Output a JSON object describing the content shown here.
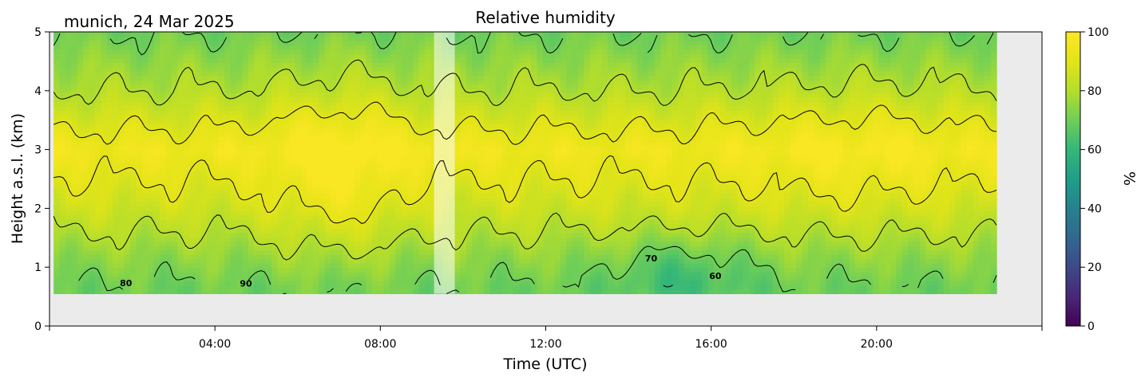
{
  "chart_data": {
    "type": "heatmap",
    "title": "Relative humidity",
    "subtitle": "munich, 24 Mar 2025",
    "xlabel": "Time (UTC)",
    "ylabel": "Height a.s.l. (km)",
    "x_tick_labels": [
      "04:00",
      "08:00",
      "12:00",
      "16:00",
      "20:00"
    ],
    "x_tick_hours": [
      4,
      8,
      12,
      16,
      20
    ],
    "x_range_hours": [
      0,
      24
    ],
    "y_tick_labels": [
      "0",
      "1",
      "2",
      "3",
      "4",
      "5"
    ],
    "y_ticks": [
      0,
      1,
      2,
      3,
      4,
      5
    ],
    "ylim": [
      0,
      5
    ],
    "data_time_range_hours": [
      0.1,
      22.9
    ],
    "data_height_range_km": [
      0.55,
      5
    ],
    "missing_data_band_hours": [
      9.3,
      9.8
    ],
    "colorbar": {
      "label": "%",
      "range": [
        0,
        100
      ],
      "tick_labels": [
        "0",
        "20",
        "40",
        "60",
        "80",
        "100"
      ],
      "ticks": [
        0,
        20,
        40,
        60,
        80,
        100
      ],
      "colormap": "viridis"
    },
    "contour_levels": [
      60,
      70,
      80,
      90
    ],
    "contour_labels": [
      {
        "text": "80",
        "time_h": 1.85,
        "height_km": 0.68
      },
      {
        "text": "90",
        "time_h": 4.75,
        "height_km": 0.67
      },
      {
        "text": "70",
        "time_h": 14.55,
        "height_km": 1.1
      },
      {
        "text": "60",
        "time_h": 16.1,
        "height_km": 0.8
      }
    ],
    "humidity_profile_description_km_pct": [
      {
        "height_km": 0.7,
        "rh": 70
      },
      {
        "height_km": 1.2,
        "rh": 75
      },
      {
        "height_km": 2.0,
        "rh": 85
      },
      {
        "height_km": 3.0,
        "rh": 95
      },
      {
        "height_km": 4.0,
        "rh": 80
      },
      {
        "height_km": 5.0,
        "rh": 70
      }
    ],
    "colors": {
      "missing_area": "#ebebeb",
      "contour_line": "#000000"
    }
  }
}
